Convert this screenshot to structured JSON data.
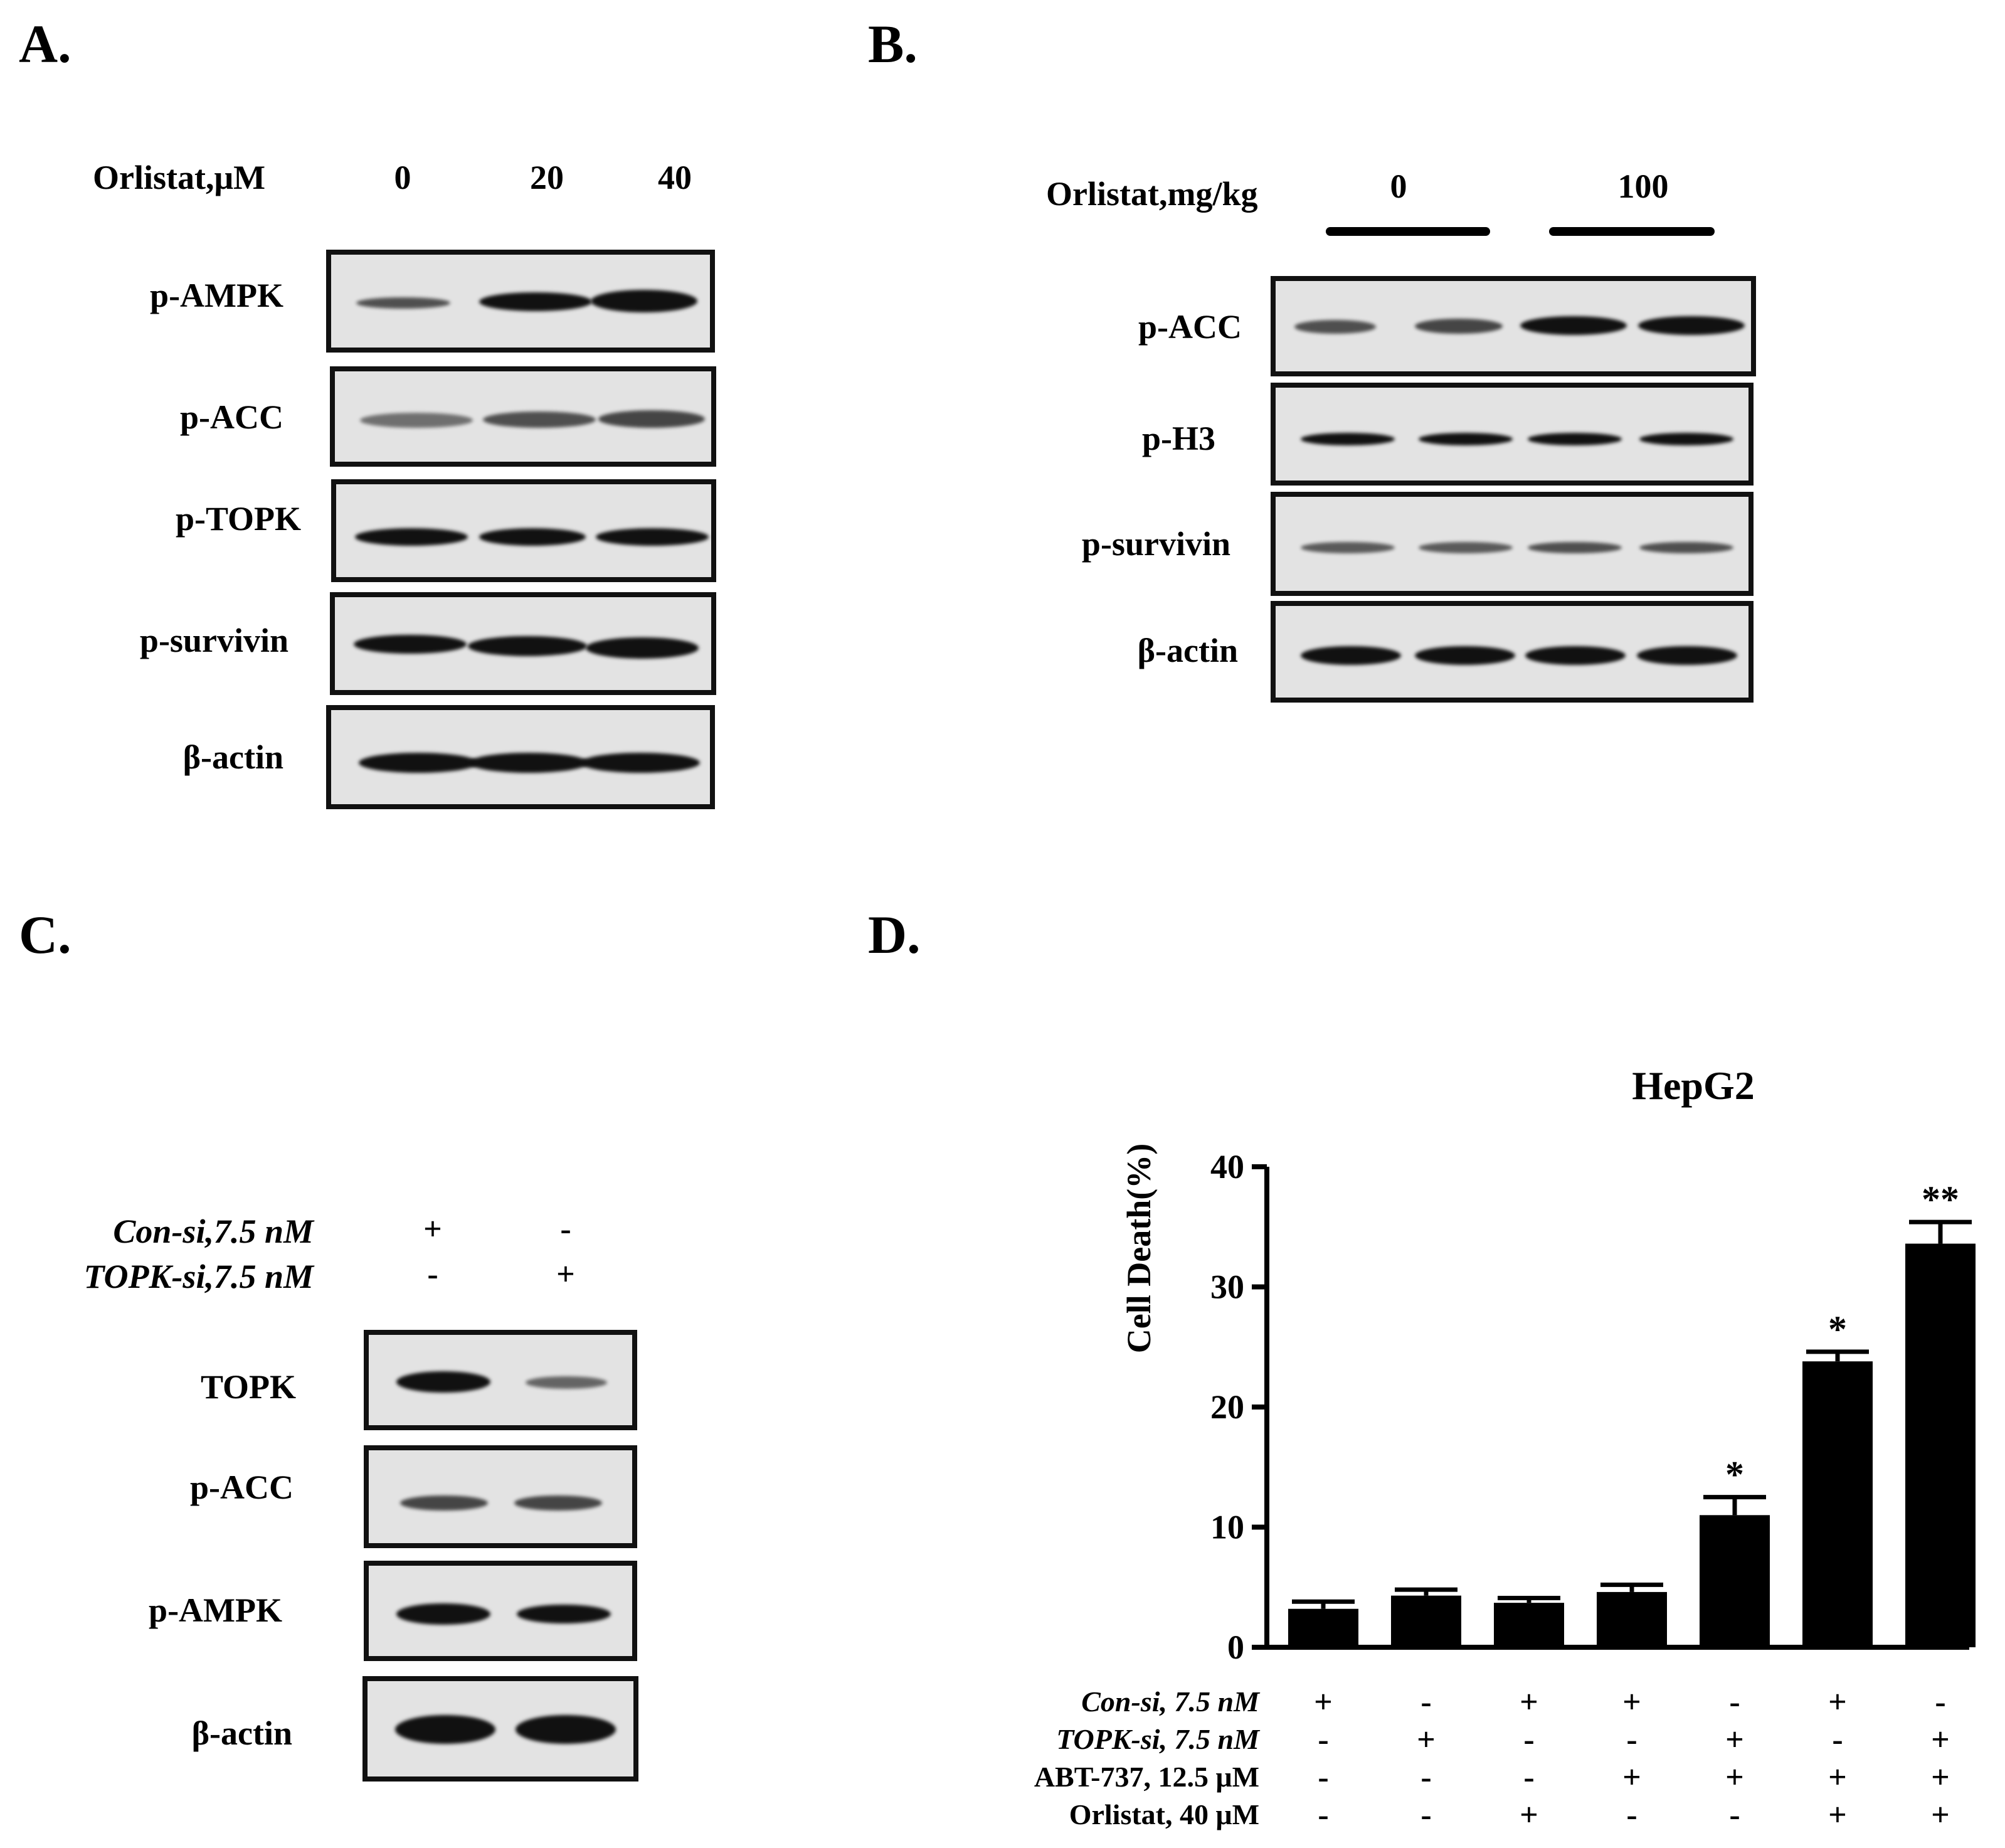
{
  "panels": {
    "a": {
      "letter": "A.",
      "condition_label": "Orlistat,μM",
      "lanes": [
        "0",
        "20",
        "40"
      ],
      "rows": [
        "p-AMPK",
        "p-ACC",
        "p-TOPK",
        "p-survivin",
        "β-actin"
      ]
    },
    "b": {
      "letter": "B.",
      "condition_label": "Orlistat,mg/kg",
      "groups": [
        "0",
        "100"
      ],
      "rows": [
        "p-ACC",
        "p-H3",
        "p-survivin",
        "β-actin"
      ]
    },
    "c": {
      "letter": "C.",
      "conditions": [
        {
          "label": "Con-si,7.5 nM",
          "marks": [
            "+",
            "-"
          ]
        },
        {
          "label": "TOPK-si,7.5 nM",
          "marks": [
            "-",
            "+"
          ]
        }
      ],
      "rows": [
        "TOPK",
        "p-ACC",
        "p-AMPK",
        "β-actin"
      ]
    },
    "d": {
      "letter": "D.",
      "conditions": [
        {
          "label": "Con-si, 7.5 nM",
          "marks": [
            "+",
            "-",
            "+",
            "+",
            "-",
            "+",
            "-"
          ]
        },
        {
          "label": "TOPK-si, 7.5 nM",
          "marks": [
            "-",
            "+",
            "-",
            "-",
            "+",
            "-",
            "+"
          ]
        },
        {
          "label": "ABT-737, 12.5 μM",
          "marks": [
            "-",
            "-",
            "-",
            "+",
            "+",
            "+",
            "+"
          ]
        },
        {
          "label": "Orlistat, 40 μM",
          "marks": [
            "-",
            "-",
            "+",
            "-",
            "-",
            "+",
            "+"
          ]
        }
      ]
    }
  },
  "chart_data": {
    "type": "bar",
    "title": "HepG2",
    "xlabel": "",
    "ylabel": "Cell Death(%)",
    "ylim": [
      0,
      40
    ],
    "yticks": [
      0,
      10,
      20,
      30,
      40
    ],
    "bar_color": "#000000",
    "grid": false,
    "values": [
      3.2,
      4.3,
      3.7,
      4.6,
      11.0,
      23.8,
      33.6
    ],
    "errors": [
      0.6,
      0.5,
      0.4,
      0.6,
      1.5,
      0.8,
      1.8
    ],
    "significance": [
      "",
      "",
      "",
      "",
      "*",
      "*",
      "**"
    ]
  }
}
